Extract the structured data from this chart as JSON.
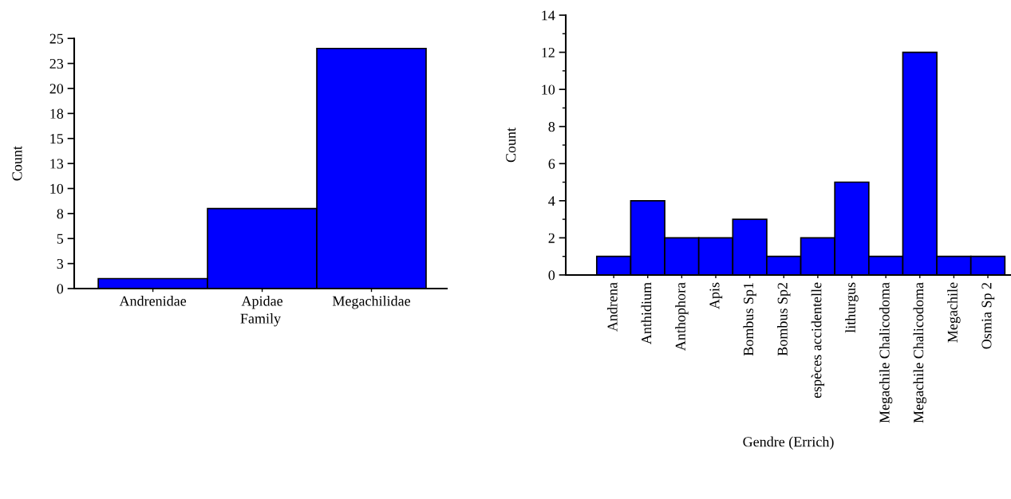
{
  "chart_data": [
    {
      "type": "bar",
      "xlabel": "Family",
      "ylabel": "Count",
      "categories": [
        "Andrenidae",
        "Apidae",
        "Megachilidae"
      ],
      "values": [
        1,
        8,
        24
      ],
      "color": "#0000ff",
      "ylim": [
        0,
        25
      ],
      "yticks": [
        0,
        {
          "value": 2.5,
          "label": "3"
        },
        5,
        {
          "value": 7.5,
          "label": "8"
        },
        10,
        {
          "value": 12.5,
          "label": "13"
        },
        15,
        {
          "value": 17.5,
          "label": "18"
        },
        20,
        {
          "value": 22.5,
          "label": "23"
        },
        25
      ],
      "grid": false,
      "legend": false
    },
    {
      "type": "bar",
      "xlabel": "Gendre (Errich)",
      "ylabel": "Count",
      "categories": [
        "Andrena",
        "Anthidium",
        "Anthophora",
        "Apis",
        "Bombus Sp1",
        "Bombus Sp2",
        "espèces accidentelle",
        "lithurgus",
        "Megachile Chalicodoma",
        "Megachile Chalicodoma",
        "Megachile",
        "Osmia Sp 2"
      ],
      "values": [
        1,
        4,
        2,
        2,
        3,
        1,
        2,
        5,
        1,
        12,
        1,
        1
      ],
      "color": "#0000ff",
      "ylim": [
        0,
        14
      ],
      "yticks": [
        0,
        {
          "value": 1,
          "label": null
        },
        2,
        {
          "value": 3,
          "label": null
        },
        4,
        {
          "value": 5,
          "label": null
        },
        6,
        {
          "value": 7,
          "label": null
        },
        8,
        {
          "value": 9,
          "label": null
        },
        10,
        {
          "value": 11,
          "label": null
        },
        12,
        {
          "value": 13,
          "label": null
        },
        14
      ],
      "grid": false,
      "legend": false
    }
  ]
}
